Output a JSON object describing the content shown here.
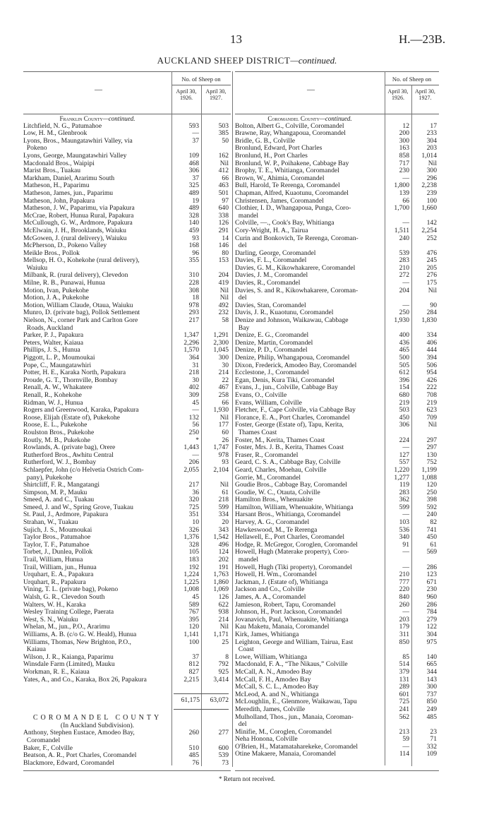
{
  "page": {
    "number": "13",
    "reference": "H.—23B."
  },
  "title": {
    "main": "AUCKLAND SHEEP DISTRICT",
    "suffix": "—continued."
  },
  "header": {
    "dash": "—",
    "group": "No. of Sheep on",
    "col1": "April 30, 1926.",
    "col2": "April 30, 1927."
  },
  "left": {
    "county_prefix": "Franklin County",
    "county_suffix": "—continued.",
    "rows": [
      {
        "name": "Litchfield, N. G., Patumahoe",
        "a": "593",
        "b": "503"
      },
      {
        "name": "Low, H. M., Glenbrook",
        "a": "—",
        "b": "385"
      },
      {
        "name": "Lyons, Bros., Maungatawhiri Valley, via\n  Pokeno",
        "a": "37",
        "b": "50"
      },
      {
        "name": "Lyons, George, Maungatawhiri Valley",
        "a": "109",
        "b": "162"
      },
      {
        "name": "Macdonald Bros., Waipipi",
        "a": "468",
        "b": "Nil"
      },
      {
        "name": "Marist Bros., Tuakau",
        "a": "306",
        "b": "412"
      },
      {
        "name": "Markham, Daniel, Ararimu South",
        "a": "37",
        "b": "66"
      },
      {
        "name": "Matheson, H., Paparimu",
        "a": "325",
        "b": "463"
      },
      {
        "name": "Matheson, James, jun., Paparimu",
        "a": "489",
        "b": "501"
      },
      {
        "name": "Matheson, John, Papakura",
        "a": "19",
        "b": "97"
      },
      {
        "name": "Matheson, J. W., Paparimu, via Papakura",
        "a": "489",
        "b": "640"
      },
      {
        "name": "McCrae, Robert, Hunua Rural, Papakura",
        "a": "328",
        "b": "338"
      },
      {
        "name": "McCullough, G. W., Ardmore, Papakura",
        "a": "140",
        "b": "126"
      },
      {
        "name": "McElwain, J. H., Brooklands, Waiuku",
        "a": "459",
        "b": "291"
      },
      {
        "name": "McGowen, J. (rural delivery), Waiuku",
        "a": "93",
        "b": "14"
      },
      {
        "name": "McPherson, D., Pokeno Valley",
        "a": "168",
        "b": "146"
      },
      {
        "name": "Meikle Bros., Pollok",
        "a": "96",
        "b": "80"
      },
      {
        "name": "Mellsop, H. O., Kohekohe (rural delivery),\n  Waiuku",
        "a": "355",
        "b": "153"
      },
      {
        "name": "Milbank, R. (rural delivery), Clevedon",
        "a": "310",
        "b": "204"
      },
      {
        "name": "Milne, R. B., Punawai, Hunua",
        "a": "228",
        "b": "419"
      },
      {
        "name": "Motion, Ivan, Pukekohe",
        "a": "308",
        "b": "Nil"
      },
      {
        "name": "Motion, J. A., Pukekohe",
        "a": "18",
        "b": "Nil"
      },
      {
        "name": "Motion, William Claude, Otaua, Waiuku",
        "a": "978",
        "b": "492"
      },
      {
        "name": "Munro, D. (private bag), Pollok Settlement",
        "a": "293",
        "b": "232"
      },
      {
        "name": "Nielson, N., corner Park and Carlton Gore\n  Roads, Auckland",
        "a": "217",
        "b": "58"
      },
      {
        "name": "Parker, P. J., Papakura",
        "a": "1,347",
        "b": "1,291"
      },
      {
        "name": "Peters, Walter, Kaiaua",
        "a": "2,296",
        "b": "2,300"
      },
      {
        "name": "Phillips, J. S., Hunua",
        "a": "1,570",
        "b": "1,045"
      },
      {
        "name": "Piggott, L. P., Moumoukai",
        "a": "364",
        "b": "300"
      },
      {
        "name": "Pope, C., Maungatawhiri",
        "a": "31",
        "b": "30"
      },
      {
        "name": "Potter, H. E., Karaka North, Papakura",
        "a": "218",
        "b": "214"
      },
      {
        "name": "Proude, G. T., Thornville, Bombay",
        "a": "30",
        "b": "22"
      },
      {
        "name": "Renall, A. W., Whakatere",
        "a": "402",
        "b": "467"
      },
      {
        "name": "Renall, R., Kohekohe",
        "a": "309",
        "b": "258"
      },
      {
        "name": "Ridman, W. J., Hunua",
        "a": "45",
        "b": "66"
      },
      {
        "name": "Rogers and Greenwood, Karaka, Papakura",
        "a": "—",
        "b": "1,930"
      },
      {
        "name": "Roose, Elijah (Estate of), Pukekohe",
        "a": "132",
        "b": "Nil"
      },
      {
        "name": "Roose, E. L., Pukekohe",
        "a": "56",
        "b": "177"
      },
      {
        "name": "Roulston Bros., Pukekohe",
        "a": "250",
        "b": "60"
      },
      {
        "name": "Routly, M. B., Pukekohe",
        "a": "*",
        "b": "26"
      },
      {
        "name": "Rowlands, A. (private bag), Orere",
        "a": "1,443",
        "b": "1,747"
      },
      {
        "name": "Rutherford Bros., Awhitu Central",
        "a": "—",
        "b": "978"
      },
      {
        "name": "Rutherford, W. J., Bombay",
        "a": "206",
        "b": "93"
      },
      {
        "name": "Schlaepfer, John (c/o Helvetia Ostrich Com-\n  pany), Pukekohe",
        "a": "2,055",
        "b": "2,104"
      },
      {
        "name": "Shirtcliff, F. R., Mangatangi",
        "a": "217",
        "b": "Nil"
      },
      {
        "name": "Simpson, M. P., Mauku",
        "a": "36",
        "b": "61"
      },
      {
        "name": "Smeed, A. and C., Tuakau",
        "a": "320",
        "b": "218"
      },
      {
        "name": "Smeed, J. and W., Spring Grove, Tuakau",
        "a": "725",
        "b": "599"
      },
      {
        "name": "St. Paul, J., Ardmore, Papakura",
        "a": "351",
        "b": "334"
      },
      {
        "name": "Strahan, W., Tuakau",
        "a": "10",
        "b": "20"
      },
      {
        "name": "Sujich, J. S., Moumoukai",
        "a": "326",
        "b": "343"
      },
      {
        "name": "Taylor Bros., Patumahoe",
        "a": "1,376",
        "b": "1,542"
      },
      {
        "name": "Taylor, T. F., Patumahoe",
        "a": "328",
        "b": "496"
      },
      {
        "name": "Torbet, J., Dunlea, Pollok",
        "a": "105",
        "b": "124"
      },
      {
        "name": "Trail, William, Hunua",
        "a": "183",
        "b": "202"
      },
      {
        "name": "Trail, William, jun., Hunua",
        "a": "192",
        "b": "191"
      },
      {
        "name": "Urquhart, E. A., Papakura",
        "a": "1,224",
        "b": "1,763"
      },
      {
        "name": "Urquhart, R., Papakura",
        "a": "1,225",
        "b": "1,860"
      },
      {
        "name": "Vining, T. L. (private bag), Pokeno",
        "a": "1,008",
        "b": "1,069"
      },
      {
        "name": "Walsh, G. R., Clevedon South",
        "a": "45",
        "b": "126"
      },
      {
        "name": "Walters, W. H., Karaka",
        "a": "589",
        "b": "622"
      },
      {
        "name": "Wesley Training College, Paerata",
        "a": "767",
        "b": "938"
      },
      {
        "name": "West, S. N., Waiuku",
        "a": "395",
        "b": "214"
      },
      {
        "name": "Whelan, M., jun., P.O., Ararimu",
        "a": "120",
        "b": "Nil"
      },
      {
        "name": "Williams, A. B. (c/o G. W. Heald), Hunua",
        "a": "1,141",
        "b": "1,171"
      },
      {
        "name": "Williams, Thomas, New Brighton, P.O.,\n  Kaiaua",
        "a": "100",
        "b": "25"
      },
      {
        "name": "Wilson, J. R., Kaianga, Paparimu",
        "a": "37",
        "b": "8"
      },
      {
        "name": "Winsdale Farm (Limited), Mauku",
        "a": "812",
        "b": "792"
      },
      {
        "name": "Workman, R. E., Kaiaua",
        "a": "827",
        "b": "925"
      },
      {
        "name": "Yates, A., and Co., Karaka, Box 26, Papakura",
        "a": "2,215",
        "b": "3,414"
      }
    ],
    "total": {
      "a": "61,175",
      "b": "63,072"
    },
    "section2": {
      "heading": "COROMANDEL COUNTY",
      "subheading": "(In Auckland Subdivision).",
      "rows": [
        {
          "name": "Anthony, Stephen Eustace, Amodeo Bay,\n  Coromandel",
          "a": "260",
          "b": "277"
        },
        {
          "name": "Baker, F., Colville",
          "a": "510",
          "b": "600"
        },
        {
          "name": "Beatson, A. R., Port Charles, Coromandel",
          "a": "485",
          "b": "539"
        },
        {
          "name": "Blackmore, Edward, Coromandel",
          "a": "76",
          "b": "73"
        }
      ]
    }
  },
  "right": {
    "county_prefix": "Coromandel County",
    "county_suffix": "—continued.",
    "rows": [
      {
        "name": "Bolton, Albert G., Colville, Coromandel",
        "a": "12",
        "b": "17"
      },
      {
        "name": "Brawne, Ray, Whangapoua, Coromandel",
        "a": "200",
        "b": "233"
      },
      {
        "name": "Bridle, G. B., Colville",
        "a": "300",
        "b": "304"
      },
      {
        "name": "Bronlund, Edward, Port Charles",
        "a": "163",
        "b": "203"
      },
      {
        "name": "Bronlund, H., Port Charles",
        "a": "858",
        "b": "1,014"
      },
      {
        "name": "Bronlund, W. P., Poihakene, Cabbage Bay",
        "a": "717",
        "b": "Nil"
      },
      {
        "name": "Brophy, T. E., Whitianga, Coromandel",
        "a": "230",
        "b": "300"
      },
      {
        "name": "Brown, W., Ahimia, Coromandel",
        "a": "—",
        "b": "296"
      },
      {
        "name": "Bull, Harold, Te Rerenga, Coromandel",
        "a": "1,800",
        "b": "2,238"
      },
      {
        "name": "Chapman, Alfred, Kuaotunu, Coromandel",
        "a": "139",
        "b": "239"
      },
      {
        "name": "Christensen, James, Coromandel",
        "a": "66",
        "b": "100"
      },
      {
        "name": "Clothier, I. D., Whangapoua, Punga, Coro-\n  mandel",
        "a": "1,700",
        "b": "1,660"
      },
      {
        "name": "Colville, —., Cook's Bay, Whitianga",
        "a": "—",
        "b": "142"
      },
      {
        "name": "Cory-Wright, H. A., Tairua",
        "a": "1,511",
        "b": "2,254"
      },
      {
        "name": "Curin and Bonkovich, Te Rerenga, Coroman-\n  del",
        "a": "240",
        "b": "252"
      },
      {
        "name": "Darling, George, Coromandel",
        "a": "539",
        "b": "476"
      },
      {
        "name": "Davies, F. L., Coromandel",
        "a": "283",
        "b": "245"
      },
      {
        "name": "Davies, G. M., Kikowhakarere, Coromandel",
        "a": "210",
        "b": "205"
      },
      {
        "name": "Davies, J. M., Coromandel",
        "a": "272",
        "b": "276"
      },
      {
        "name": "Davies, R., Coromandel",
        "a": "—",
        "b": "175"
      },
      {
        "name": "Davies, S. and R., Kikowhakarere, Coroman-\n  del",
        "a": "204",
        "b": "Nil"
      },
      {
        "name": "Davies, Stan, Coromandel",
        "a": "—",
        "b": "90"
      },
      {
        "name": "Davis, J. R., Kuaotunu, Coromandel",
        "a": "250",
        "b": "284"
      },
      {
        "name": "Denize and Johnson, Waikawau, Cabbage\n  Bay",
        "a": "1,930",
        "b": "1,830"
      },
      {
        "name": "Denize, E. G., Coromandel",
        "a": "400",
        "b": "334"
      },
      {
        "name": "Denize, Martin, Coromandel",
        "a": "436",
        "b": "406"
      },
      {
        "name": "Denize, P. D., Coromandel",
        "a": "465",
        "b": "444"
      },
      {
        "name": "Denize, Philip, Whangapoua, Coromandel",
        "a": "500",
        "b": "394"
      },
      {
        "name": "Dixon, Frederick, Amodeo Bay, Coromandel",
        "a": "505",
        "b": "506"
      },
      {
        "name": "Ecclestone, J., Coromandel",
        "a": "612",
        "b": "954"
      },
      {
        "name": "Egan, Denis, Kura Tiki, Coromandel",
        "a": "396",
        "b": "426"
      },
      {
        "name": "Evans, J., jun., Colville, Cabbage Bay",
        "a": "154",
        "b": "222"
      },
      {
        "name": "Evans, O., Colville",
        "a": "680",
        "b": "708"
      },
      {
        "name": "Evans, William, Colville",
        "a": "219",
        "b": "219"
      },
      {
        "name": "Fletcher, F., Cape Colville, via Cabbage Bay",
        "a": "503",
        "b": "623"
      },
      {
        "name": "Florance, E. A., Port Charles, Coromandel",
        "a": "450",
        "b": "709"
      },
      {
        "name": "Foster, George (Estate of), Tapu, Kerita,\n  Thames Coast",
        "a": "306",
        "b": "Nil"
      },
      {
        "name": "Foster, M., Kerita, Thames Coast",
        "a": "224",
        "b": "297"
      },
      {
        "name": "Foster, Mrs. J. B., Kerita, Thames Coast",
        "a": "—",
        "b": "297"
      },
      {
        "name": "Fraser, R., Coromandel",
        "a": "127",
        "b": "130"
      },
      {
        "name": "Geard, C. S. A., Cabbage Bay, Colville",
        "a": "557",
        "b": "752"
      },
      {
        "name": "Geard, Charles, Moehau, Colville",
        "a": "1,220",
        "b": "1,199"
      },
      {
        "name": "Gorrie, M., Coromandel",
        "a": "1,277",
        "b": "1,088"
      },
      {
        "name": "Goudie Bros., Cabbage Bay, Coromandel",
        "a": "119",
        "b": "120"
      },
      {
        "name": "Goudie, W. C., Otauta, Colville",
        "a": "283",
        "b": "250"
      },
      {
        "name": "Hamilton Bros., Whenuakite",
        "a": "362",
        "b": "398"
      },
      {
        "name": "Hamilton, William, Whenuakite, Whitianga",
        "a": "599",
        "b": "592"
      },
      {
        "name": "Harsant Bros., Whitianga, Coromandel",
        "a": "—",
        "b": "240"
      },
      {
        "name": "Harvey, A. G., Coromandel",
        "a": "103",
        "b": "82"
      },
      {
        "name": "Hawkeswood, M., Te Rerenga",
        "a": "536",
        "b": "741"
      },
      {
        "name": "Hellawell, E., Port Charles, Coromandel",
        "a": "340",
        "b": "450"
      },
      {
        "name": "Hodge, R. McGregor, Coroglen, Coromandel",
        "a": "91",
        "b": "61"
      },
      {
        "name": "Howell, Hugh (Materake property), Coro-\n  mandel",
        "a": "—",
        "b": "569"
      },
      {
        "name": "Howell, Hugh (Tiki property), Coromandel",
        "a": "—",
        "b": "286"
      },
      {
        "name": "Howell, H. Wm., Coromandel",
        "a": "210",
        "b": "123"
      },
      {
        "name": "Jackman, J. (Estate of), Whitianga",
        "a": "777",
        "b": "671"
      },
      {
        "name": "Jackson and Co., Colville",
        "a": "220",
        "b": "230"
      },
      {
        "name": "James, A. A., Coromandel",
        "a": "840",
        "b": "960"
      },
      {
        "name": "Jamieson, Robert, Tapu, Coromandel",
        "a": "260",
        "b": "286"
      },
      {
        "name": "Johnson, H., Port Jackson, Coromandel",
        "a": "—",
        "b": "784"
      },
      {
        "name": "Jovanavich, Paul, Whenuakite, Whitianga",
        "a": "203",
        "b": "279"
      },
      {
        "name": "Kau Maketu, Manaia, Coromandel",
        "a": "179",
        "b": "122"
      },
      {
        "name": "Kirk, James, Whitianga",
        "a": "311",
        "b": "304"
      },
      {
        "name": "Leighton, George and William, Tairua, East\n  Coast",
        "a": "850",
        "b": "975"
      },
      {
        "name": "Lowe, William, Whitianga",
        "a": "85",
        "b": "140"
      },
      {
        "name": "Macdonald, F. A., “The Nikaus,” Colville",
        "a": "514",
        "b": "665"
      },
      {
        "name": "McCall, A. N., Amodeo Bay",
        "a": "379",
        "b": "344"
      },
      {
        "name": "McCall, F. H., Amodeo Bay",
        "a": "131",
        "b": "143"
      },
      {
        "name": "McCall, S. C. L., Amodeo Bay",
        "a": "289",
        "b": "300"
      },
      {
        "name": "McLeod, A. and N., Whitianga",
        "a": "601",
        "b": "737"
      },
      {
        "name": "McLoughlin, E., Glenmore, Waikawau, Tapu",
        "a": "725",
        "b": "850"
      },
      {
        "name": "Meredith, James, Colville",
        "a": "241",
        "b": "249"
      },
      {
        "name": "Mulholland, Thos., jun., Manaia, Coroman-\n  del",
        "a": "562",
        "b": "485"
      },
      {
        "name": "Minifie, M., Coroglen, Coromandel",
        "a": "213",
        "b": "23"
      },
      {
        "name": "Neha Honona, Colville",
        "a": "59",
        "b": "71"
      },
      {
        "name": "O'Brien, H., Matamataharekeke, Coromandel",
        "a": "—",
        "b": "332"
      },
      {
        "name": "Otine Makaere, Manaia, Coromandel",
        "a": "114",
        "b": "109"
      }
    ]
  },
  "footnote": "* Return not received."
}
